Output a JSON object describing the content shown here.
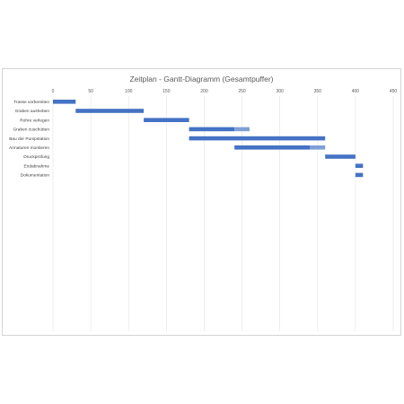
{
  "chart_data": {
    "type": "bar",
    "orientation": "horizontal",
    "stacked": true,
    "title": "Zeitplan - Gantt-Diagramm (Gesamtpuffer)",
    "xlim": [
      0,
      450
    ],
    "x_ticks": [
      0,
      50,
      100,
      150,
      200,
      250,
      300,
      350,
      400,
      450
    ],
    "x_axis_position": "top",
    "grid": true,
    "legend": "none",
    "categories": [
      "Trasse vorbereiten",
      "Graben ausheben",
      "Rohre verlegen",
      "Graben zuschütten",
      "Bau der Pumpstation",
      "Armaturen montieren",
      "Druckprüfung",
      "Endabnahme",
      "Dokumentation"
    ],
    "series": [
      {
        "role": "offset",
        "color": "none",
        "values": [
          0,
          30,
          120,
          180,
          180,
          240,
          360,
          400,
          400
        ]
      },
      {
        "role": "duration",
        "color": "#4472c4",
        "values": [
          30,
          90,
          60,
          60,
          180,
          100,
          40,
          10,
          10
        ]
      },
      {
        "role": "buffer",
        "color": "#7f9fd6",
        "values": [
          0,
          0,
          0,
          20,
          0,
          20,
          0,
          0,
          0
        ]
      }
    ]
  }
}
